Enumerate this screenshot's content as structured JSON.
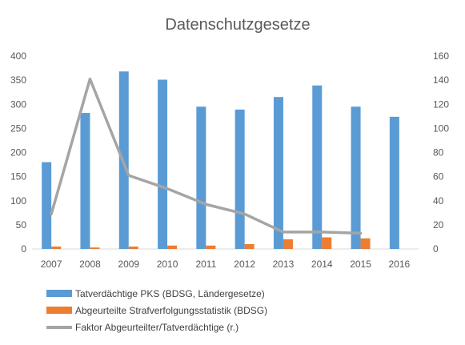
{
  "chart_data": {
    "type": "bar",
    "title": "Datenschutzgesetze",
    "categories": [
      "2007",
      "2008",
      "2009",
      "2010",
      "2011",
      "2012",
      "2013",
      "2014",
      "2015",
      "2016"
    ],
    "y_left": {
      "ylim": [
        0,
        400
      ],
      "ticks": [
        "0",
        "50",
        "100",
        "150",
        "200",
        "250",
        "300",
        "350",
        "400"
      ]
    },
    "y_right": {
      "ylim": [
        0,
        160
      ],
      "ticks": [
        "0",
        "20",
        "40",
        "60",
        "80",
        "100",
        "120",
        "140",
        "160"
      ]
    },
    "grid": false,
    "legend_position": "bottom",
    "series": [
      {
        "name": "Tatverdächtige PKS (BDSG, Ländergesetze)",
        "type": "bar",
        "axis": "left",
        "color": "#5B9BD5",
        "values": [
          180,
          282,
          368,
          351,
          295,
          289,
          315,
          339,
          295,
          274
        ]
      },
      {
        "name": "Abgeurteilte Strafverfolgungsstatistik (BDSG)",
        "type": "bar",
        "axis": "left",
        "color": "#ED7D31",
        "values": [
          5,
          3,
          5,
          7,
          7,
          10,
          20,
          24,
          22,
          null
        ]
      },
      {
        "name": "Faktor Abgeurteilter/Tatverdächtige (r.)",
        "type": "line",
        "axis": "right",
        "color": "#A5A5A5",
        "values": [
          29,
          141,
          61,
          50,
          37,
          29,
          14,
          14,
          13,
          null
        ]
      }
    ]
  }
}
